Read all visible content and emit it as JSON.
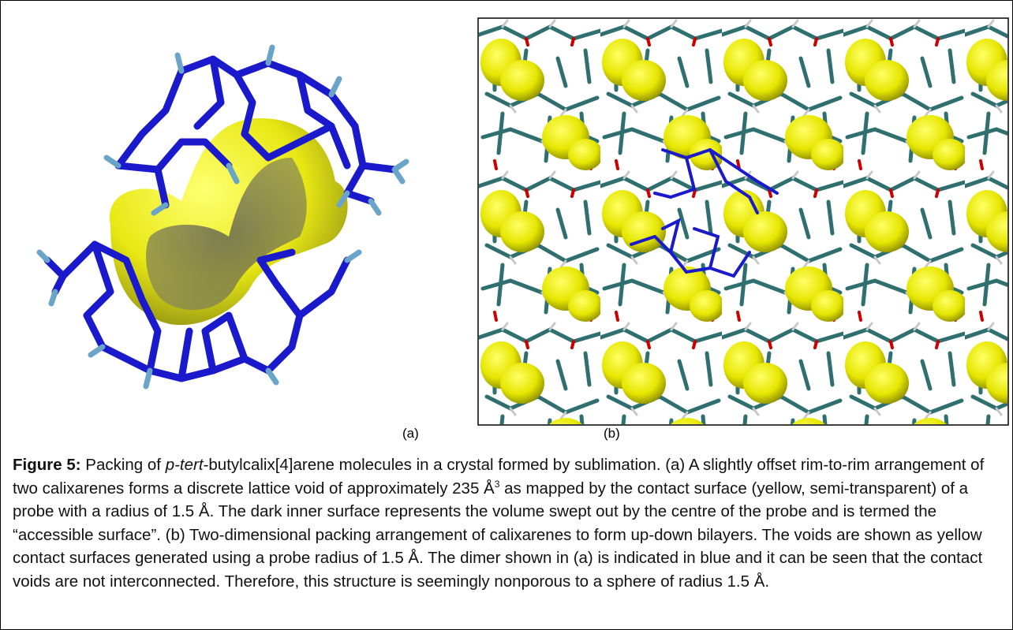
{
  "figure": {
    "panels": [
      {
        "label": "(a)"
      },
      {
        "label": "(b)"
      }
    ],
    "caption": {
      "label": "Figure 5:",
      "parts": [
        " Packing of ",
        "p-tert",
        "-butylcalix[4]arene molecules in a crystal formed by sublimation. (a) A slightly offset rim-to-rim arrangement of two calixarenes forms a discrete lattice void of approximately 235 Å",
        "3",
        " as mapped by the contact surface (yellow, semi-transparent) of a probe with a radius of 1.5 Å. The dark inner surface represents the volume swept out by the centre of the probe and is termed the “accessible surface”. (b) Two-dimensional packing arrangement of calixarenes to form up-down bilayers. The voids are shown as yellow contact surfaces generated using a probe radius of 1.5 Å. The dimer shown in (a) is indicated in blue and it can be seen that the contact voids are not interconnected. Therefore, this structure is seemingly nonporous to a sphere of radius 1.5 Å."
      ]
    }
  }
}
